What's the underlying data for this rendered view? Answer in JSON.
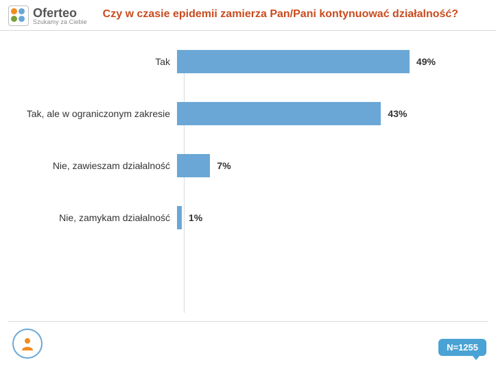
{
  "logo": {
    "name": "Oferteo",
    "tagline": "Szukamy za Ciebie",
    "dot_colors": [
      "#f28c1e",
      "#6aa7d6",
      "#7aa13a",
      "#6aa7d6"
    ]
  },
  "title": {
    "text": "Czy w czasie epidemii zamierza Pan/Pani kontynuować działalność?",
    "color": "#c94b1e"
  },
  "chart": {
    "type": "bar",
    "orientation": "horizontal",
    "bar_color": "#6aa7d6",
    "max_value": 60,
    "rows": [
      {
        "label": "Tak",
        "value": 49,
        "display": "49%"
      },
      {
        "label": "Tak, ale w ograniczonym zakresie",
        "value": 43,
        "display": "43%"
      },
      {
        "label": "Nie, zawieszam działalność",
        "value": 7,
        "display": "7%"
      },
      {
        "label": "Nie, zamykam działalność",
        "value": 1,
        "display": "1%"
      }
    ],
    "label_fontsize": 14,
    "value_fontsize": 14,
    "background_color": "#ffffff",
    "axis_color": "#d9d9d9"
  },
  "footer": {
    "n_label": "N=1255",
    "badge_color": "#4aa3d4",
    "icon_accent": "#f28c1e",
    "icon_ring": "#6aa7d6"
  }
}
